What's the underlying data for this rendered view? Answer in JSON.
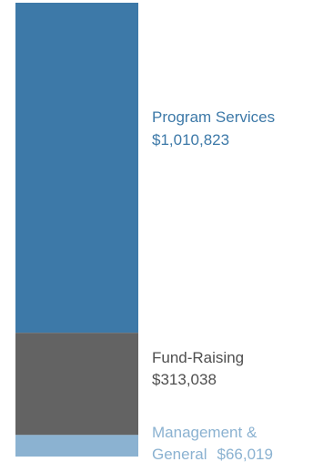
{
  "chart_data": {
    "type": "bar",
    "stacked": true,
    "series": [
      {
        "name": "Program Services",
        "value": 1010823,
        "value_label": "$1,010,823",
        "color": "#3d79a8",
        "label_color": "#3d79a8"
      },
      {
        "name": "Fund-Raising",
        "value": 313038,
        "value_label": "$313,038",
        "color": "#636363",
        "label_color": "#4f4f4f"
      },
      {
        "name": "Management &",
        "name_line2": "General",
        "value": 66019,
        "value_label": "$66,019",
        "color": "#8bb2d1",
        "label_color": "#8bb2d1"
      }
    ],
    "legend": "right"
  }
}
